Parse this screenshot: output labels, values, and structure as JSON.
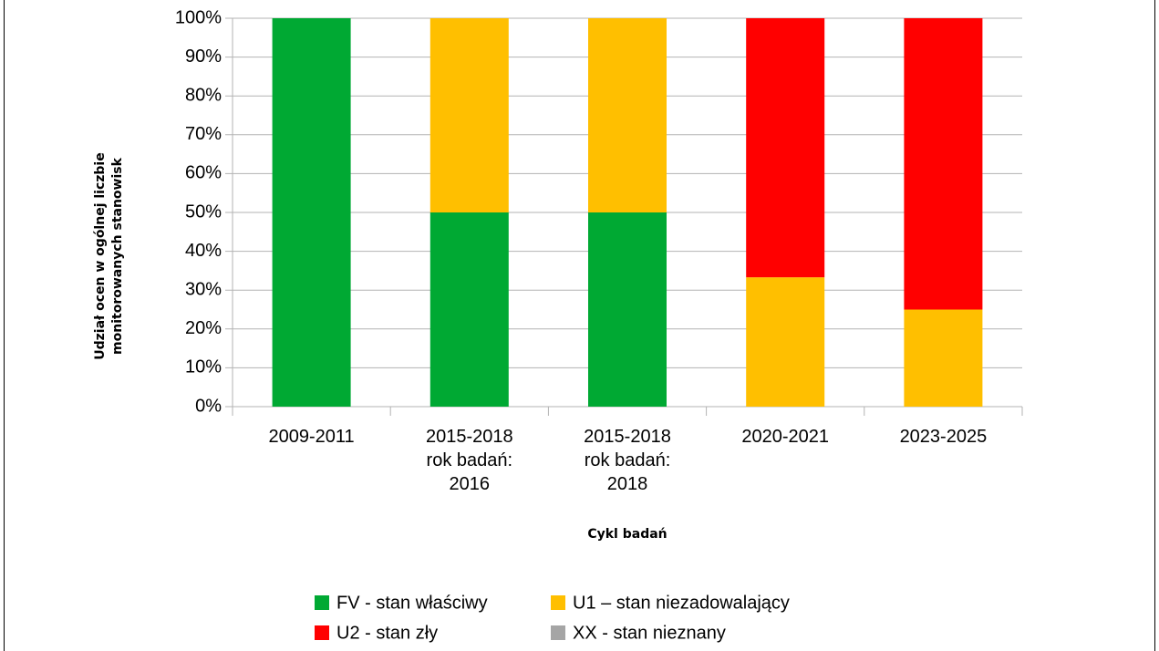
{
  "chart_data": {
    "type": "stacked_bar",
    "ylabel": "Udział ocen w ogólnej liczbie\nmonitorowanych stanowisk",
    "xlabel": "Cykl badań",
    "categories": [
      "2009-2011",
      "2015-2018\nrok badań:\n2016",
      "2015-2018\nrok badań:\n2018",
      "2020-2021",
      "2023-2025"
    ],
    "series": [
      {
        "name": "FV - stan właściwy",
        "color": "#00a933",
        "values": [
          100,
          50,
          50,
          0,
          0
        ]
      },
      {
        "name": "U1 – stan niezadowalający",
        "color": "#ffbf00",
        "values": [
          0,
          50,
          50,
          33.3,
          25
        ]
      },
      {
        "name": "U2 - stan zły",
        "color": "#ff0000",
        "values": [
          0,
          0,
          0,
          66.7,
          75
        ]
      },
      {
        "name": "XX - stan nieznany",
        "color": "#a5a5a5",
        "values": [
          0,
          0,
          0,
          0,
          0
        ]
      }
    ],
    "ylim": [
      0,
      100
    ],
    "yticks": [
      {
        "value": 0,
        "label": "0%"
      },
      {
        "value": 10,
        "label": "10%"
      },
      {
        "value": 20,
        "label": "20%"
      },
      {
        "value": 30,
        "label": "30%"
      },
      {
        "value": 40,
        "label": "40%"
      },
      {
        "value": 50,
        "label": "50%"
      },
      {
        "value": 60,
        "label": "60%"
      },
      {
        "value": 70,
        "label": "70%"
      },
      {
        "value": 80,
        "label": "80%"
      },
      {
        "value": 90,
        "label": "90%"
      },
      {
        "value": 100,
        "label": "100%"
      }
    ],
    "grid": true,
    "legend": "bottom"
  }
}
